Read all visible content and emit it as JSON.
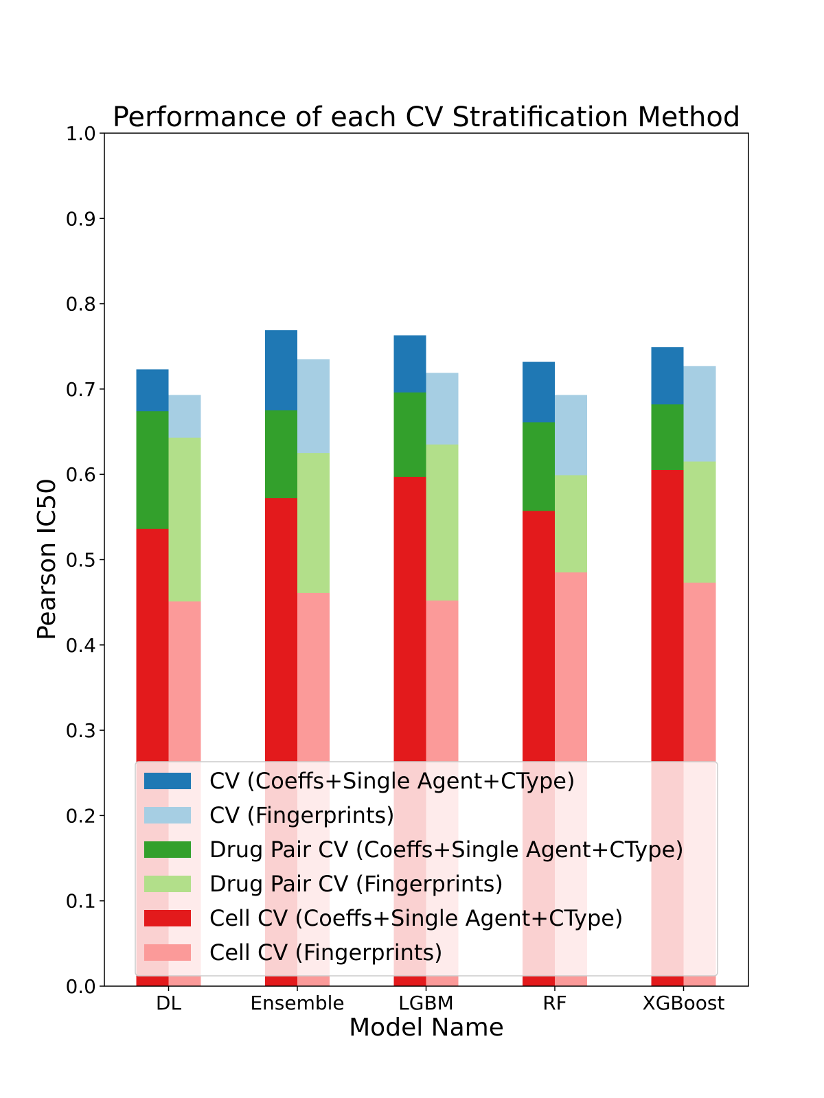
{
  "chart_data": {
    "type": "bar",
    "title": "Performance of each CV Stratification Method",
    "xlabel": "Model Name",
    "ylabel": "Pearson IC50",
    "ylim": [
      0,
      1.0
    ],
    "yticks": [
      "0.0",
      "0.1",
      "0.2",
      "0.3",
      "0.4",
      "0.5",
      "0.6",
      "0.7",
      "0.8",
      "0.9",
      "1.0"
    ],
    "categories": [
      "DL",
      "Ensemble",
      "LGBM",
      "RF",
      "XGBoost"
    ],
    "grid": false,
    "legend_position": "bottom-center",
    "series": [
      {
        "name": "CV (Coeffs+Single Agent+CType)",
        "color": "#1f78b4",
        "values": [
          0.723,
          0.769,
          0.763,
          0.732,
          0.749
        ]
      },
      {
        "name": "CV (Fingerprints)",
        "color": "#a6cee3",
        "values": [
          0.693,
          0.735,
          0.719,
          0.693,
          0.727
        ]
      },
      {
        "name": "Drug Pair CV (Coeffs+Single Agent+CType)",
        "color": "#33a02c",
        "values": [
          0.674,
          0.675,
          0.696,
          0.661,
          0.682
        ]
      },
      {
        "name": "Drug Pair CV (Fingerprints)",
        "color": "#b2df8a",
        "values": [
          0.643,
          0.625,
          0.635,
          0.599,
          0.615
        ]
      },
      {
        "name": "Cell CV (Coeffs+Single Agent+CType)",
        "color": "#e31a1c",
        "values": [
          0.536,
          0.572,
          0.597,
          0.557,
          0.605
        ]
      },
      {
        "name": "Cell CV (Fingerprints)",
        "color": "#fb9a99",
        "values": [
          0.451,
          0.461,
          0.452,
          0.485,
          0.473
        ]
      }
    ]
  }
}
